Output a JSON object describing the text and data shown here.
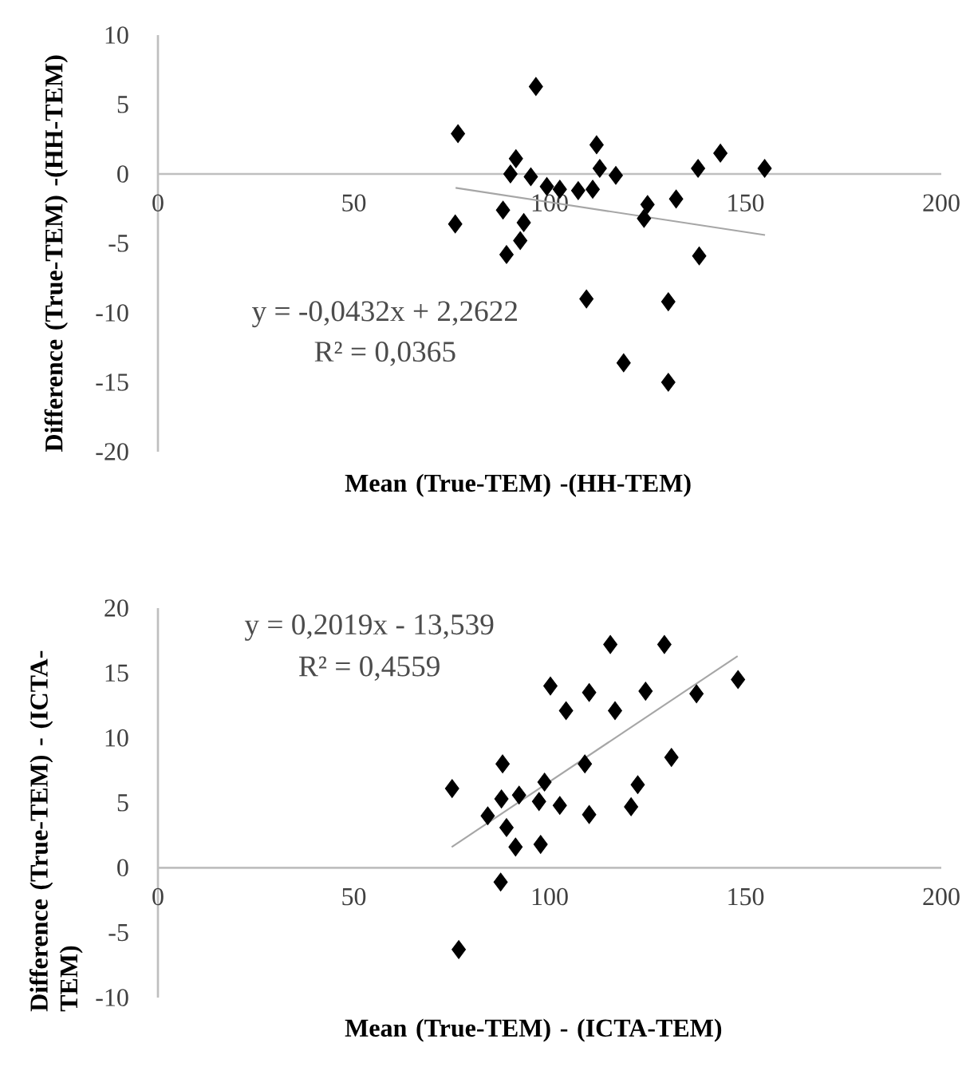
{
  "chart_data": [
    {
      "type": "scatter",
      "xlabel": "Mean (True-TEM) -(HH-TEM)",
      "ylabel": "Difference (True-TEM) -(HH-TEM)",
      "xlim": [
        0,
        200
      ],
      "xticks": [
        0,
        50,
        100,
        150,
        200
      ],
      "ylim": [
        -20,
        10
      ],
      "yticks": [
        -20,
        -15,
        -10,
        -5,
        0,
        5,
        10
      ],
      "series": [
        {
          "marker": "diamond",
          "color": "#000000",
          "x": [
            76.6,
            75.9,
            88.1,
            89.0,
            91.4,
            90.0,
            93.4,
            92.5,
            96.5,
            95.2,
            99.3,
            102.6,
            107.3,
            111.0,
            112.0,
            112.8,
            116.9,
            109.4,
            125.0,
            124.1,
            132.3,
            137.9,
            143.6,
            154.9,
            138.2,
            130.3,
            118.9,
            130.3
          ],
          "values": [
            2.9,
            -3.6,
            -2.6,
            -5.8,
            1.1,
            0.0,
            -3.5,
            -4.8,
            6.3,
            -0.2,
            -0.9,
            -1.1,
            -1.2,
            -1.1,
            2.1,
            0.4,
            -0.1,
            -9.0,
            -2.2,
            -3.2,
            -1.8,
            0.4,
            1.5,
            0.4,
            -5.9,
            -9.2,
            -13.6,
            -15.0
          ]
        },
        {
          "type": "line",
          "color": "#a6a6a6",
          "x": [
            76,
            155
          ],
          "values": [
            -1.0,
            -4.4
          ]
        }
      ],
      "annotations": [
        "y = -0,0432x + 2,2622",
        "R² = 0,0365"
      ]
    },
    {
      "type": "scatter",
      "xlabel": "Mean (True-TEM) - (ICTA-TEM)",
      "ylabel": "Difference (True-TEM) - (ICTA-TEM)",
      "xlim": [
        0,
        200
      ],
      "xticks": [
        0,
        50,
        100,
        150,
        200
      ],
      "ylim": [
        -10,
        20
      ],
      "yticks": [
        -10,
        -5,
        0,
        5,
        10,
        15,
        20
      ],
      "series": [
        {
          "marker": "diamond",
          "color": "#000000",
          "x": [
            75.1,
            76.8,
            84.2,
            88.0,
            87.7,
            89.0,
            91.3,
            87.5,
            92.2,
            97.3,
            97.7,
            98.7,
            102.6,
            100.2,
            104.2,
            109.0,
            110.1,
            110.1,
            115.5,
            116.7,
            120.8,
            122.5,
            124.5,
            129.3,
            131.1,
            137.5,
            148.1
          ],
          "values": [
            6.1,
            -6.3,
            4.0,
            8.0,
            5.3,
            3.1,
            1.6,
            -1.1,
            5.6,
            5.1,
            1.8,
            6.6,
            4.8,
            14.0,
            12.1,
            8.0,
            4.1,
            13.5,
            17.2,
            12.1,
            4.7,
            6.4,
            13.6,
            17.2,
            8.5,
            13.4,
            14.5
          ]
        },
        {
          "type": "line",
          "color": "#a6a6a6",
          "x": [
            75,
            148
          ],
          "values": [
            1.6,
            16.3
          ]
        }
      ],
      "annotations": [
        "y = 0,2019x - 13,539",
        "R² = 0,4559"
      ]
    }
  ]
}
